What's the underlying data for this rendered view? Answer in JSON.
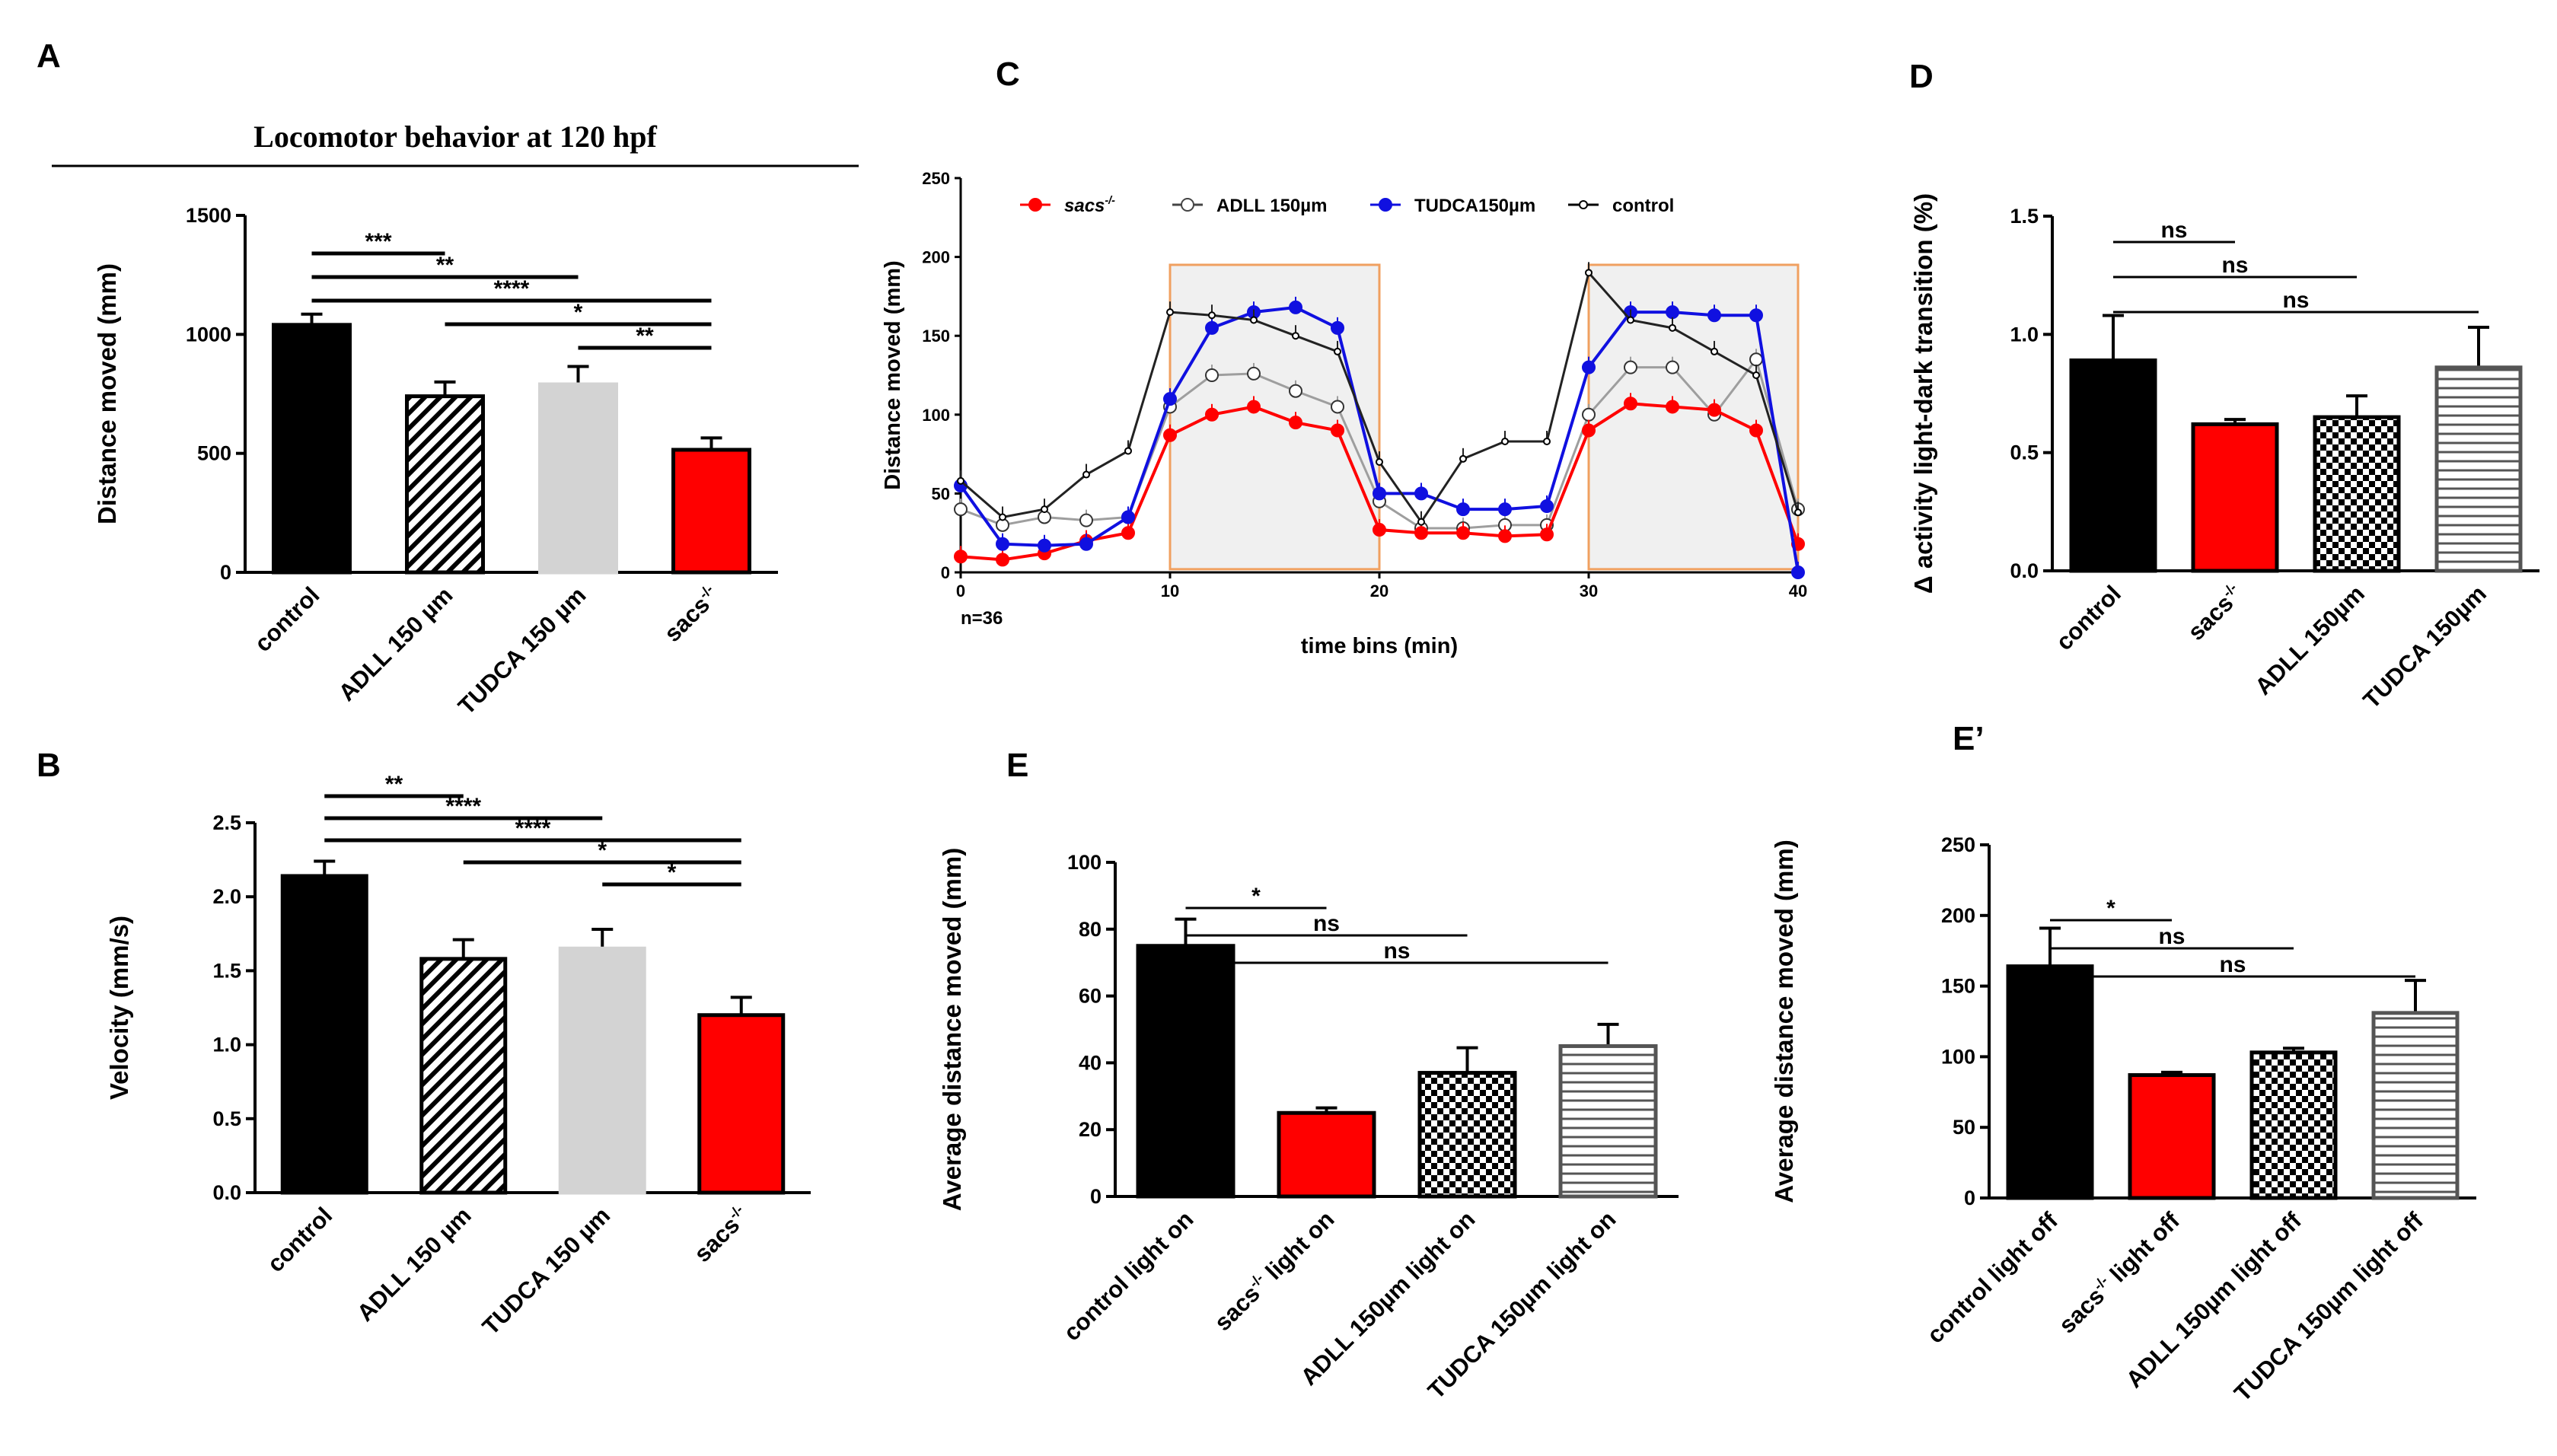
{
  "colors": {
    "black": "#000000",
    "red": "#ff0000",
    "grey": "#d3d3d3",
    "blue": "#1010e0",
    "orange": "#f0a060",
    "light_gray_line": "#9e9e9e"
  },
  "chart_data": [
    {
      "panel": "A",
      "type": "bar",
      "title": "Locomotor behavior at 120 hpf",
      "ylabel": "Distance moved (mm)",
      "ylim": [
        0,
        1500
      ],
      "yticks": [
        0,
        500,
        1000,
        1500
      ],
      "categories": [
        "control",
        "ADLL 150 µm",
        "TUDCA 150 µm",
        "sacs"
      ],
      "cat_sup": [
        "",
        "",
        "",
        "-/-"
      ],
      "values": [
        1040,
        740,
        790,
        515
      ],
      "errors": [
        45,
        60,
        75,
        50
      ],
      "fills": [
        "black",
        "diag",
        "lightgrey",
        "red"
      ],
      "significance": [
        {
          "from": 0,
          "to": 1,
          "label": "***",
          "row": 0
        },
        {
          "from": 0,
          "to": 2,
          "label": "**",
          "row": 1
        },
        {
          "from": 0,
          "to": 3,
          "label": "****",
          "row": 2
        },
        {
          "from": 1,
          "to": 3,
          "label": "*",
          "row": 3
        },
        {
          "from": 2,
          "to": 3,
          "label": "**",
          "row": 4
        }
      ]
    },
    {
      "panel": "B",
      "type": "bar",
      "ylabel": "Velocity (mm/s)",
      "ylim": [
        0,
        2.5
      ],
      "yticks": [
        0.0,
        0.5,
        1.0,
        1.5,
        2.0,
        2.5
      ],
      "ytick_labels": [
        "0.0",
        "0.5",
        "1.0",
        "1.5",
        "2.0",
        "2.5"
      ],
      "categories": [
        "control",
        "ADLL 150 µm",
        "TUDCA 150 µm",
        "sacs"
      ],
      "cat_sup": [
        "",
        "",
        "",
        "-/-"
      ],
      "values": [
        2.14,
        1.58,
        1.65,
        1.2
      ],
      "errors": [
        0.1,
        0.13,
        0.13,
        0.12
      ],
      "fills": [
        "black",
        "diag",
        "lightgrey",
        "red"
      ],
      "significance": [
        {
          "from": 0,
          "to": 1,
          "label": "**",
          "row": 0
        },
        {
          "from": 0,
          "to": 2,
          "label": "****",
          "row": 1
        },
        {
          "from": 0,
          "to": 3,
          "label": "****",
          "row": 2
        },
        {
          "from": 1,
          "to": 3,
          "label": "*",
          "row": 3
        },
        {
          "from": 2,
          "to": 3,
          "label": "*",
          "row": 4
        }
      ]
    },
    {
      "panel": "C",
      "type": "line",
      "xlabel": "time bins (min)",
      "ylabel": "Distance moved (mm)",
      "annotation": "n=36",
      "xlim": [
        0,
        40
      ],
      "ylim": [
        0,
        250
      ],
      "xticks": [
        0,
        10,
        20,
        30,
        40
      ],
      "yticks": [
        0,
        50,
        100,
        150,
        200,
        250
      ],
      "shaded": [
        [
          10,
          20
        ],
        [
          30,
          40
        ]
      ],
      "x": [
        0,
        2,
        4,
        6,
        8,
        10,
        12,
        14,
        16,
        18,
        20,
        22,
        24,
        26,
        28,
        30,
        32,
        34,
        36,
        38,
        40
      ],
      "series": [
        {
          "name": "sacs",
          "sup": "-/-",
          "style": "red",
          "values": [
            10,
            8,
            12,
            20,
            25,
            87,
            100,
            105,
            95,
            90,
            27,
            25,
            25,
            23,
            24,
            90,
            107,
            105,
            103,
            90,
            18
          ]
        },
        {
          "name": "ADLL 150µm",
          "style": "hollow",
          "values": [
            40,
            30,
            35,
            33,
            35,
            105,
            125,
            126,
            115,
            105,
            45,
            28,
            28,
            30,
            30,
            100,
            130,
            130,
            100,
            135,
            40
          ]
        },
        {
          "name": "TUDCA150µm",
          "style": "blue",
          "values": [
            55,
            18,
            17,
            18,
            35,
            110,
            155,
            165,
            168,
            155,
            50,
            50,
            40,
            40,
            42,
            130,
            165,
            165,
            163,
            163,
            0
          ]
        },
        {
          "name": "control",
          "style": "black",
          "values": [
            58,
            35,
            40,
            62,
            77,
            165,
            163,
            160,
            150,
            140,
            70,
            32,
            72,
            83,
            83,
            190,
            160,
            155,
            140,
            125,
            38
          ]
        }
      ]
    },
    {
      "panel": "D",
      "type": "bar",
      "ylabel": "Δ activity light-dark transition (%)",
      "ylim": [
        0,
        1.5
      ],
      "yticks": [
        0.0,
        0.5,
        1.0,
        1.5
      ],
      "ytick_labels": [
        "0.0",
        "0.5",
        "1.0",
        "1.5"
      ],
      "categories": [
        "control",
        "sacs",
        "ADLL 150µm",
        "TUDCA 150µm"
      ],
      "cat_sup": [
        "",
        "-/-",
        "",
        ""
      ],
      "values": [
        0.89,
        0.62,
        0.65,
        0.86
      ],
      "errors": [
        0.19,
        0.02,
        0.09,
        0.17
      ],
      "fills": [
        "black",
        "red",
        "check",
        "hstripe"
      ],
      "significance": [
        {
          "from": 0,
          "to": 1,
          "label": "ns",
          "row": 0
        },
        {
          "from": 0,
          "to": 2,
          "label": "ns",
          "row": 1
        },
        {
          "from": 0,
          "to": 3,
          "label": "ns",
          "row": 2
        }
      ]
    },
    {
      "panel": "E",
      "type": "bar",
      "ylabel": "Average distance moved (mm)",
      "ylim": [
        0,
        100
      ],
      "yticks": [
        0,
        20,
        40,
        60,
        80,
        100
      ],
      "categories": [
        "control light on",
        "sacs  light on",
        "ADLL 150µm  light on",
        "TUDCA 150µm  light on"
      ],
      "cat_sup": [
        "",
        "-/-",
        "",
        ""
      ],
      "values": [
        75,
        25,
        37,
        45
      ],
      "errors": [
        8,
        1.5,
        7.5,
        6.5
      ],
      "fills": [
        "black",
        "red",
        "check",
        "hstripe"
      ],
      "significance": [
        {
          "from": 0,
          "to": 1,
          "label": "*",
          "row": 0
        },
        {
          "from": 0,
          "to": 2,
          "label": "ns",
          "row": 1
        },
        {
          "from": 0,
          "to": 3,
          "label": "ns",
          "row": 2
        }
      ]
    },
    {
      "panel": "E’",
      "type": "bar",
      "ylabel": "Average distance moved (mm)",
      "ylim": [
        0,
        250
      ],
      "yticks": [
        0,
        50,
        100,
        150,
        200,
        250
      ],
      "categories": [
        "control light off",
        "sacs  light off",
        "ADLL 150µm light off",
        "TUDCA 150µm light off"
      ],
      "cat_sup": [
        "",
        "-/-",
        "",
        ""
      ],
      "values": [
        164,
        87,
        103,
        131
      ],
      "errors": [
        27,
        2,
        3,
        23
      ],
      "fills": [
        "black",
        "red",
        "check",
        "hstripe"
      ],
      "significance": [
        {
          "from": 0,
          "to": 1,
          "label": "*",
          "row": 0
        },
        {
          "from": 0,
          "to": 2,
          "label": "ns",
          "row": 1
        },
        {
          "from": 0,
          "to": 3,
          "label": "ns",
          "row": 2
        }
      ]
    }
  ]
}
